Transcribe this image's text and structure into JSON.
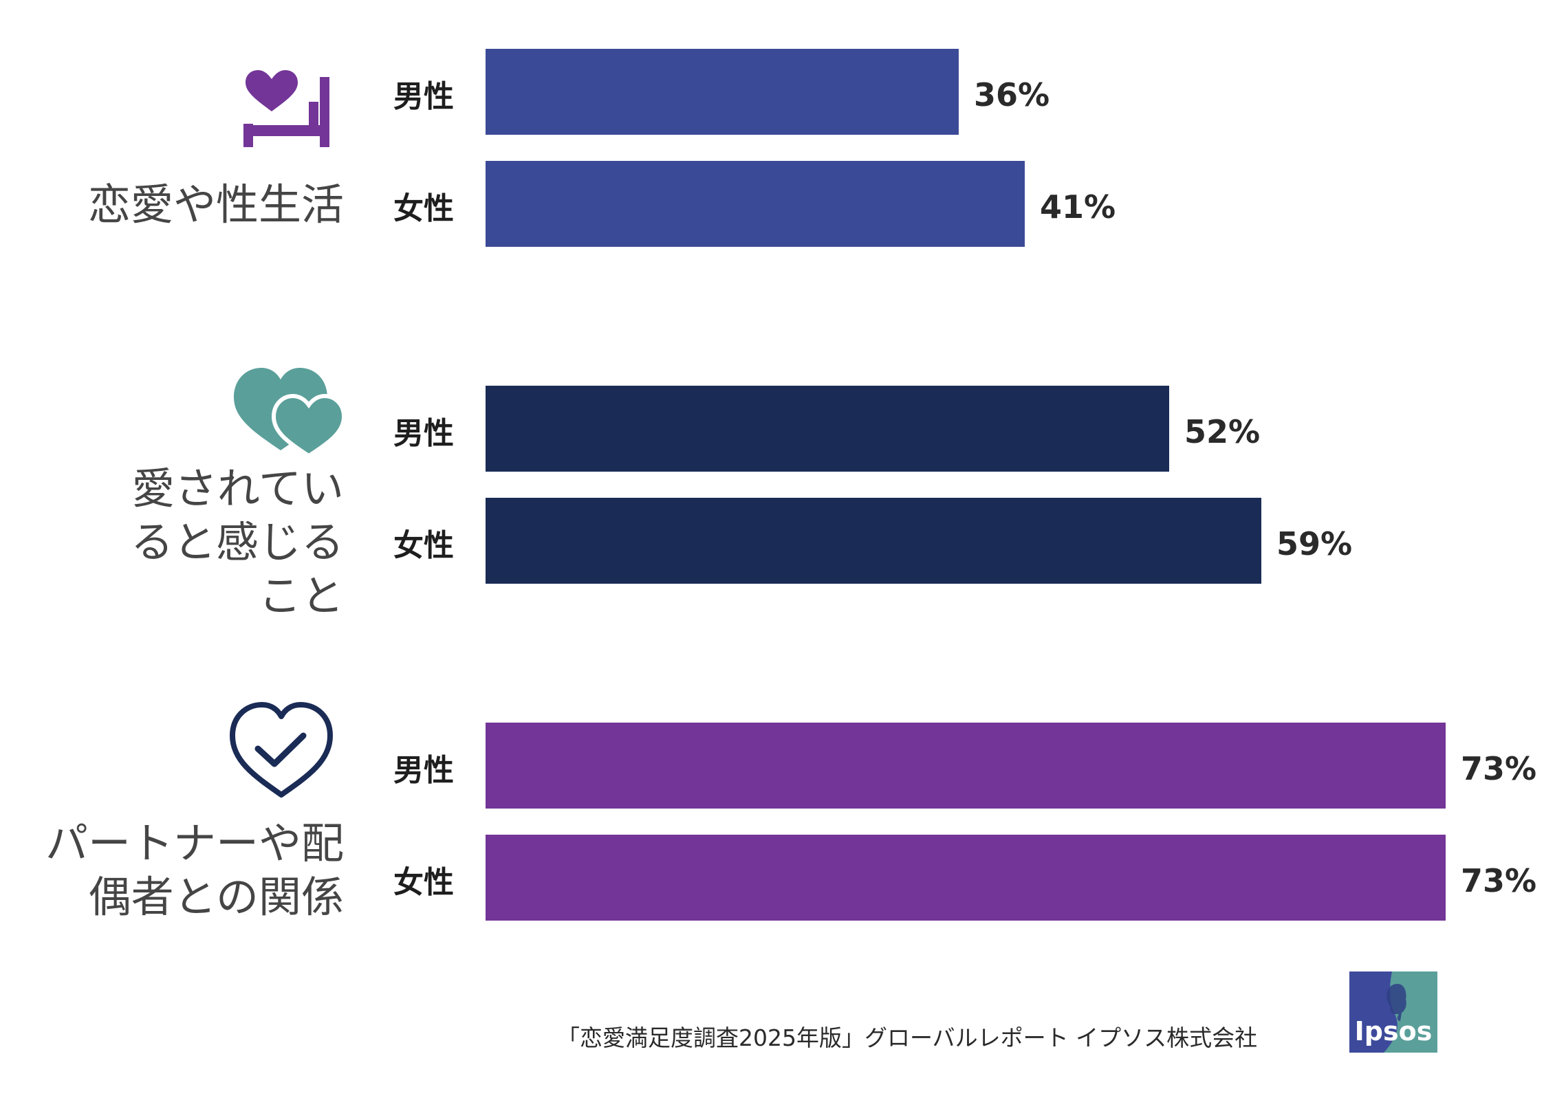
{
  "chart_data": {
    "type": "bar",
    "orientation": "horizontal",
    "xlim": [
      0,
      100
    ],
    "groups": [
      {
        "label": "恋愛や性生活",
        "icon": "heart-bed-icon",
        "color": "#3b4a97",
        "bars": [
          {
            "name": "男性",
            "value": 36,
            "value_label": "36%"
          },
          {
            "name": "女性",
            "value": 41,
            "value_label": "41%"
          }
        ]
      },
      {
        "label": "愛されてい\nると感じる\nこと",
        "icon": "two-hearts-icon",
        "color": "#1a2b55",
        "bars": [
          {
            "name": "男性",
            "value": 52,
            "value_label": "52%"
          },
          {
            "name": "女性",
            "value": 59,
            "value_label": "59%"
          }
        ]
      },
      {
        "label": "パートナーや配\n偶者との関係",
        "icon": "heart-check-icon",
        "color": "#733597",
        "bars": [
          {
            "name": "男性",
            "value": 73,
            "value_label": "73%"
          },
          {
            "name": "女性",
            "value": 73,
            "value_label": "73%"
          }
        ]
      }
    ]
  },
  "footer": {
    "source": "「恋愛満足度調査2025年版」グローバルレポート イプソス株式会社"
  },
  "logo": {
    "text": "Ipsos",
    "colors": [
      "#3d4a9b",
      "#5a9f9a"
    ]
  },
  "icon_colors": {
    "heart_bed": "#733597",
    "two_hearts": "#5a9f9a",
    "heart_check": "#1a2b55"
  }
}
